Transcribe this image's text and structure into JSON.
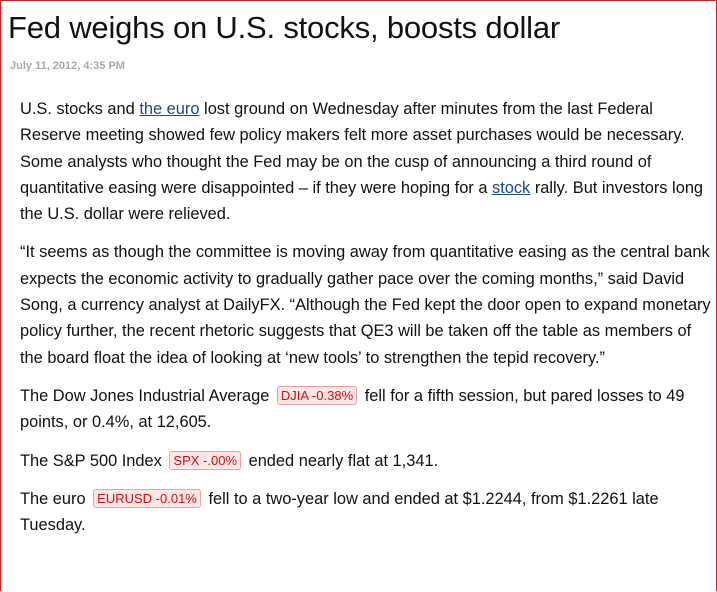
{
  "article": {
    "title": "Fed weighs on U.S. stocks, boosts dollar",
    "date": "July 11, 2012, 4:35 PM",
    "p1": {
      "t1": "U.S. stocks and ",
      "link1": "the euro",
      "t2": " lost ground on Wednesday after minutes from the last Federal Reserve meeting showed few policy makers felt more asset purchases would be necessary. Some analysts who thought the Fed may be on the cusp of announcing a third round of quantitative easing were disappointed – if they were hoping for a ",
      "link2": "stock",
      "t3": " rally. But investors  long the U.S. dollar were relieved."
    },
    "p2": "“It seems as though the committee is moving away from quantitative easing as the central bank expects the economic activity to gradually gather pace over the coming months,” said David Song, a currency analyst at DailyFX.  “Although the  Fed kept the door open to expand monetary policy further, the recent rhetoric suggests that QE3 will be taken off the table as members of the board float the idea of looking at ‘new tools’ to strengthen the tepid recovery.”",
    "p3": {
      "before": "The Dow Jones Industrial Average",
      "ticker": "DJIA -0.38%",
      "after": "fell for a fifth session, but pared losses to 49 points, or 0.4%, at 12,605."
    },
    "p4": {
      "before": "The S&P 500 Index",
      "ticker": "SPX -.00%",
      "after": "ended nearly flat at 1,341."
    },
    "p5": {
      "before": "The euro",
      "ticker": "EURUSD -0.01%",
      "after": "fell to a two-year low and ended at $1.2244, from $1.2261 late Tuesday."
    }
  },
  "colors": {
    "frame_border": "#cc2222",
    "link": "#1a4a8a",
    "ticker_text": "#cc1111",
    "ticker_bg": "#fde6e6",
    "date_text": "#a8a8a8"
  }
}
